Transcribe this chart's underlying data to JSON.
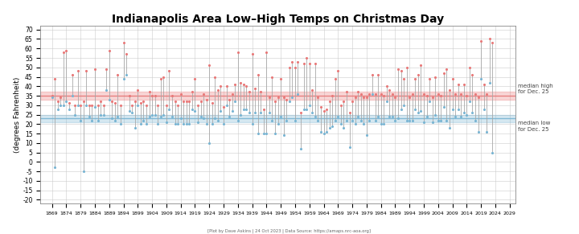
{
  "title": "Indianapolis Area Low–High Temps on Christmas Day",
  "ylabel": "(degrees Fahrenheit)",
  "footnote": "[Plot by Dave Askins | 24 Oct 2023 | Data Source: https://amaps.nrc-aoa.org]",
  "median_high": 35,
  "median_low": 23,
  "median_high_label": "median high\nfor Dec. 25",
  "median_low_label": "median low\nfor Dec. 25",
  "ylim": [
    -22,
    72
  ],
  "yticks": [
    -20,
    -15,
    -10,
    -5,
    0,
    5,
    10,
    15,
    20,
    25,
    30,
    35,
    40,
    45,
    50,
    55,
    60,
    65,
    70
  ],
  "high_color": "#E87878",
  "low_color": "#78B4D2",
  "line_color": "#A8A8A8",
  "median_high_color": "#E87878",
  "median_low_color": "#78B4D2",
  "years": [
    1869,
    1870,
    1871,
    1872,
    1873,
    1874,
    1875,
    1876,
    1877,
    1878,
    1879,
    1880,
    1881,
    1882,
    1883,
    1884,
    1885,
    1886,
    1887,
    1888,
    1889,
    1890,
    1891,
    1892,
    1893,
    1894,
    1895,
    1896,
    1897,
    1898,
    1899,
    1900,
    1901,
    1902,
    1903,
    1904,
    1905,
    1906,
    1907,
    1908,
    1909,
    1910,
    1911,
    1912,
    1913,
    1914,
    1915,
    1916,
    1917,
    1918,
    1919,
    1920,
    1921,
    1922,
    1923,
    1924,
    1925,
    1926,
    1927,
    1928,
    1929,
    1930,
    1931,
    1932,
    1933,
    1934,
    1935,
    1936,
    1937,
    1938,
    1939,
    1940,
    1941,
    1942,
    1943,
    1944,
    1945,
    1946,
    1947,
    1948,
    1949,
    1950,
    1951,
    1952,
    1953,
    1954,
    1955,
    1956,
    1957,
    1958,
    1959,
    1960,
    1961,
    1962,
    1963,
    1964,
    1965,
    1966,
    1967,
    1968,
    1969,
    1970,
    1971,
    1972,
    1973,
    1974,
    1975,
    1976,
    1977,
    1978,
    1979,
    1980,
    1981,
    1982,
    1983,
    1984,
    1985,
    1986,
    1987,
    1988,
    1989,
    1990,
    1991,
    1992,
    1993,
    1994,
    1995,
    1996,
    1997,
    1998,
    1999,
    2000,
    2001,
    2002,
    2003,
    2004,
    2005,
    2006,
    2007,
    2008,
    2009,
    2010,
    2011,
    2012,
    2013,
    2014,
    2015,
    2016,
    2017,
    2018,
    2019,
    2020,
    2021,
    2022,
    2023
  ],
  "highs": [
    35,
    44,
    32,
    34,
    58,
    59,
    31,
    46,
    30,
    48,
    30,
    32,
    48,
    30,
    30,
    49,
    30,
    32,
    30,
    49,
    59,
    32,
    31,
    46,
    30,
    63,
    57,
    35,
    30,
    32,
    38,
    31,
    32,
    30,
    37,
    35,
    35,
    30,
    44,
    45,
    30,
    48,
    35,
    32,
    30,
    36,
    32,
    32,
    32,
    37,
    44,
    30,
    32,
    36,
    33,
    51,
    31,
    45,
    38,
    40,
    29,
    40,
    33,
    36,
    41,
    58,
    42,
    41,
    40,
    37,
    57,
    39,
    46,
    37,
    28,
    58,
    34,
    45,
    32,
    34,
    44,
    34,
    33,
    50,
    53,
    50,
    53,
    26,
    52,
    55,
    52,
    38,
    52,
    34,
    29,
    27,
    28,
    32,
    35,
    44,
    48,
    30,
    32,
    37,
    26,
    32,
    34,
    37,
    36,
    34,
    34,
    36,
    46,
    36,
    46,
    36,
    35,
    40,
    38,
    36,
    34,
    49,
    48,
    44,
    50,
    34,
    36,
    44,
    46,
    51,
    36,
    35,
    44,
    34,
    45,
    36,
    35,
    47,
    49,
    38,
    44,
    36,
    41,
    36,
    41,
    35,
    50,
    46,
    36,
    34,
    64,
    41,
    36,
    65,
    63
  ],
  "lows": [
    34,
    -3,
    28,
    30,
    30,
    32,
    28,
    35,
    25,
    30,
    22,
    -5,
    30,
    24,
    22,
    29,
    22,
    25,
    25,
    38,
    33,
    23,
    22,
    24,
    20,
    44,
    46,
    27,
    26,
    18,
    30,
    20,
    22,
    20,
    24,
    25,
    25,
    20,
    24,
    25,
    21,
    28,
    24,
    20,
    20,
    23,
    20,
    20,
    20,
    28,
    27,
    21,
    24,
    23,
    20,
    10,
    20,
    23,
    22,
    27,
    20,
    30,
    24,
    27,
    32,
    22,
    25,
    28,
    28,
    26,
    20,
    26,
    15,
    26,
    15,
    15,
    26,
    22,
    15,
    20,
    24,
    14,
    22,
    32,
    34,
    22,
    36,
    7,
    28,
    28,
    30,
    26,
    24,
    22,
    16,
    15,
    16,
    18,
    19,
    22,
    24,
    20,
    18,
    22,
    8,
    22,
    20,
    24,
    22,
    20,
    14,
    22,
    36,
    22,
    24,
    20,
    20,
    32,
    24,
    24,
    22,
    23,
    28,
    30,
    22,
    22,
    22,
    28,
    26,
    27,
    21,
    24,
    32,
    21,
    25,
    22,
    22,
    29,
    22,
    18,
    28,
    24,
    28,
    24,
    26,
    25,
    32,
    26,
    22,
    16,
    44,
    28,
    16,
    42,
    5
  ]
}
